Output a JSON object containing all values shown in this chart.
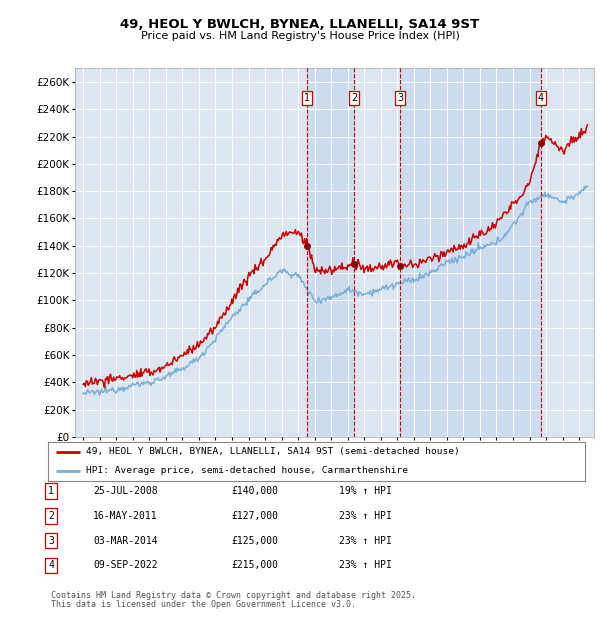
{
  "title": "49, HEOL Y BWLCH, BYNEA, LLANELLI, SA14 9ST",
  "subtitle": "Price paid vs. HM Land Registry's House Price Index (HPI)",
  "plot_bg_color": "#dce6f1",
  "shade_color": "#c8d8ee",
  "ylim": [
    0,
    270000
  ],
  "yticks": [
    0,
    20000,
    40000,
    60000,
    80000,
    100000,
    120000,
    140000,
    160000,
    180000,
    200000,
    220000,
    240000,
    260000
  ],
  "legend1": "49, HEOL Y BWLCH, BYNEA, LLANELLI, SA14 9ST (semi-detached house)",
  "legend2": "HPI: Average price, semi-detached house, Carmarthenshire",
  "footer1": "Contains HM Land Registry data © Crown copyright and database right 2025.",
  "footer2": "This data is licensed under the Open Government Licence v3.0.",
  "transactions": [
    {
      "num": 1,
      "date": "25-JUL-2008",
      "price": "£140,000",
      "hpi": "19% ↑ HPI",
      "x": 2008.557
    },
    {
      "num": 2,
      "date": "16-MAY-2011",
      "price": "£127,000",
      "hpi": "23% ↑ HPI",
      "x": 2011.374
    },
    {
      "num": 3,
      "date": "03-MAR-2014",
      "price": "£125,000",
      "hpi": "23% ↑ HPI",
      "x": 2014.169
    },
    {
      "num": 4,
      "date": "09-SEP-2022",
      "price": "£215,000",
      "hpi": "23% ↑ HPI",
      "x": 2022.692
    }
  ],
  "red_color": "#cc0000",
  "blue_color": "#7bafd4",
  "xmin": 1994.5,
  "xmax": 2025.9
}
